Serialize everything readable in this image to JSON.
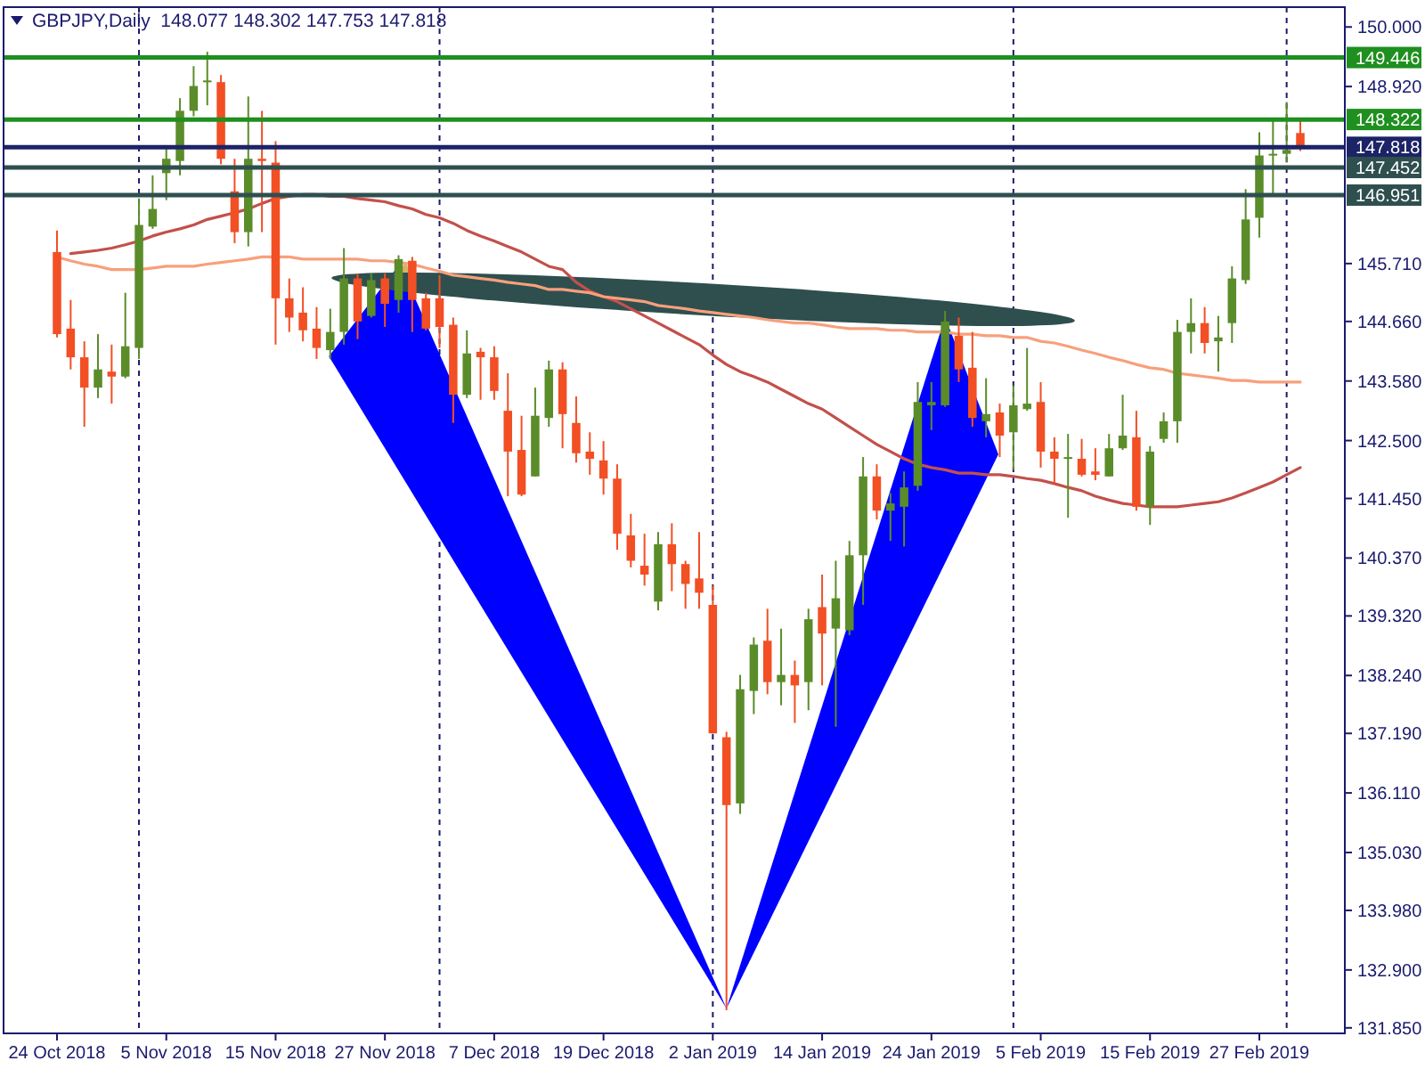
{
  "chart_data": {
    "type": "candlestick",
    "title": "GBPJPY,Daily  148.077 148.302 147.753 147.818",
    "categories": [
      "24 Oct 2018",
      null,
      null,
      null,
      null,
      null,
      null,
      null,
      "5 Nov 2018",
      null,
      null,
      null,
      null,
      null,
      null,
      null,
      "15 Nov 2018",
      null,
      null,
      null,
      null,
      null,
      null,
      null,
      "27 Nov 2018",
      null,
      null,
      null,
      null,
      null,
      null,
      null,
      "7 Dec 2018",
      null,
      null,
      null,
      null,
      null,
      null,
      null,
      "19 Dec 2018",
      null,
      null,
      null,
      null,
      null,
      null,
      null,
      "2 Jan 2019",
      null,
      null,
      null,
      null,
      null,
      null,
      null,
      "14 Jan 2019",
      null,
      null,
      null,
      null,
      null,
      null,
      null,
      "24 Jan 2019",
      null,
      null,
      null,
      null,
      null,
      null,
      null,
      "5 Feb 2019",
      null,
      null,
      null,
      null,
      null,
      null,
      null,
      "15 Feb 2019",
      null,
      null,
      null,
      null,
      null,
      null,
      null,
      "27 Feb 2019",
      null,
      null,
      null
    ],
    "ylim": [
      131.75,
      150.36
    ],
    "grid": "x",
    "yticks": [
      {
        "value": 150,
        "label": "150.000"
      },
      {
        "value": 148.92,
        "label": "148.920"
      },
      {
        "value": 145.71,
        "label": "145.710"
      },
      {
        "value": 144.66,
        "label": "144.660"
      },
      {
        "value": 143.58,
        "label": "143.580"
      },
      {
        "value": 142.5,
        "label": "142.500"
      },
      {
        "value": 141.45,
        "label": "141.450"
      },
      {
        "value": 140.37,
        "label": "140.370"
      },
      {
        "value": 139.32,
        "label": "139.320"
      },
      {
        "value": 138.24,
        "label": "138.240"
      },
      {
        "value": 137.19,
        "label": "137.190"
      },
      {
        "value": 136.11,
        "label": "136.110"
      },
      {
        "value": 135.03,
        "label": "135.030"
      },
      {
        "value": 133.98,
        "label": "133.980"
      },
      {
        "value": 132.9,
        "label": "132.900"
      },
      {
        "value": 131.85,
        "label": "131.850"
      }
    ],
    "series": [
      {
        "type": "line",
        "color": "#c3504b",
        "values": [
          null,
          145.89,
          145.92,
          145.95,
          145.99,
          146.05,
          146.12,
          146.21,
          146.28,
          146.34,
          146.41,
          146.51,
          146.57,
          146.63,
          146.7,
          146.8,
          146.89,
          146.93,
          146.96,
          146.96,
          146.93,
          146.93,
          146.89,
          146.86,
          146.83,
          146.76,
          146.7,
          146.6,
          146.54,
          146.44,
          146.31,
          146.21,
          146.12,
          146.02,
          145.92,
          145.79,
          145.66,
          145.6,
          145.37,
          145.21,
          145.11,
          145.02,
          144.89,
          144.76,
          144.63,
          144.5,
          144.37,
          144.24,
          144.05,
          143.88,
          143.75,
          143.66,
          143.56,
          143.43,
          143.3,
          143.17,
          143.07,
          142.91,
          142.75,
          142.59,
          142.43,
          142.3,
          142.17,
          142.07,
          142.01,
          141.97,
          141.91,
          141.91,
          141.88,
          141.88,
          141.85,
          141.81,
          141.78,
          141.72,
          141.65,
          141.59,
          141.49,
          141.42,
          141.36,
          141.33,
          141.3,
          141.3,
          141.3,
          141.33,
          141.36,
          141.39,
          141.46,
          141.55,
          141.65,
          141.75,
          141.88,
          142.01
        ]
      },
      {
        "type": "line",
        "color": "#f7a07c",
        "values": [
          145.83,
          145.76,
          145.7,
          145.66,
          145.6,
          145.6,
          145.6,
          145.63,
          145.66,
          145.66,
          145.66,
          145.7,
          145.73,
          145.76,
          145.79,
          145.83,
          145.83,
          145.83,
          145.79,
          145.79,
          145.79,
          145.79,
          145.79,
          145.76,
          145.76,
          145.73,
          145.7,
          145.63,
          145.57,
          145.5,
          145.47,
          145.44,
          145.41,
          145.37,
          145.34,
          145.31,
          145.24,
          145.24,
          145.21,
          145.18,
          145.11,
          145.08,
          145.05,
          145.02,
          144.95,
          144.92,
          144.89,
          144.85,
          144.82,
          144.79,
          144.76,
          144.73,
          144.69,
          144.66,
          144.63,
          144.63,
          144.6,
          144.56,
          144.53,
          144.53,
          144.53,
          144.5,
          144.5,
          144.47,
          144.47,
          144.47,
          144.43,
          144.43,
          144.4,
          144.4,
          144.37,
          144.37,
          144.3,
          144.27,
          144.21,
          144.14,
          144.08,
          144.01,
          143.95,
          143.88,
          143.82,
          143.79,
          143.72,
          143.69,
          143.66,
          143.63,
          143.59,
          143.59,
          143.56,
          143.56,
          143.56,
          143.56
        ]
      },
      {
        "type": "candlestick",
        "ohlc": [
          [
            145.92,
            146.31,
            144.37,
            144.43
          ],
          [
            144.53,
            145.05,
            143.79,
            144.01
          ],
          [
            144.01,
            144.3,
            142.75,
            143.46
          ],
          [
            143.46,
            144.43,
            143.27,
            143.79
          ],
          [
            143.75,
            144.24,
            143.17,
            143.66
          ],
          [
            143.66,
            145.18,
            143.63,
            144.21
          ],
          [
            144.18,
            146.89,
            143.98,
            146.41
          ],
          [
            146.38,
            147.31,
            146.34,
            146.7
          ],
          [
            147.35,
            147.83,
            146.86,
            147.61
          ],
          [
            147.57,
            148.71,
            147.31,
            148.48
          ],
          [
            148.48,
            149.29,
            148.38,
            148.93
          ],
          [
            149.0,
            149.55,
            148.58,
            149.03
          ],
          [
            149.0,
            149.13,
            147.51,
            147.61
          ],
          [
            147.02,
            147.61,
            146.08,
            146.28
          ],
          [
            146.28,
            148.74,
            146.02,
            147.61
          ],
          [
            147.61,
            148.48,
            146.28,
            147.57
          ],
          [
            147.54,
            147.93,
            144.24,
            145.08
          ],
          [
            145.08,
            145.44,
            144.47,
            144.73
          ],
          [
            144.82,
            145.28,
            144.3,
            144.5
          ],
          [
            144.53,
            144.92,
            143.98,
            144.18
          ],
          [
            144.14,
            144.89,
            143.98,
            144.47
          ],
          [
            144.47,
            145.99,
            144.24,
            145.44
          ],
          [
            145.44,
            145.53,
            144.34,
            144.66
          ],
          [
            144.76,
            145.53,
            144.73,
            145.41
          ],
          [
            145.44,
            145.53,
            144.56,
            144.98
          ],
          [
            145.05,
            145.86,
            144.82,
            145.79
          ],
          [
            145.76,
            145.83,
            144.47,
            145.05
          ],
          [
            145.08,
            145.18,
            144.5,
            144.53
          ],
          [
            145.08,
            145.5,
            144.18,
            144.56
          ],
          [
            144.6,
            144.73,
            142.82,
            143.33
          ],
          [
            143.33,
            144.5,
            143.27,
            144.08
          ],
          [
            144.11,
            144.18,
            143.24,
            144.01
          ],
          [
            144.01,
            144.21,
            143.24,
            143.4
          ],
          [
            143.04,
            143.72,
            141.49,
            142.3
          ],
          [
            142.33,
            142.95,
            141.49,
            141.52
          ],
          [
            141.85,
            143.46,
            141.85,
            142.95
          ],
          [
            142.91,
            143.95,
            142.75,
            143.79
          ],
          [
            143.79,
            143.92,
            142.36,
            142.98
          ],
          [
            142.82,
            143.3,
            142.1,
            142.27
          ],
          [
            142.3,
            142.65,
            141.88,
            142.17
          ],
          [
            142.14,
            142.49,
            141.52,
            141.81
          ],
          [
            141.81,
            142.07,
            140.52,
            140.81
          ],
          [
            140.78,
            141.17,
            140.2,
            140.32
          ],
          [
            140.23,
            140.81,
            139.87,
            140.07
          ],
          [
            139.58,
            140.84,
            139.42,
            140.62
          ],
          [
            140.62,
            141.0,
            139.77,
            140.26
          ],
          [
            140.26,
            140.32,
            139.45,
            139.9
          ],
          [
            140.0,
            140.84,
            139.45,
            139.74
          ],
          [
            139.52,
            139.87,
            137.19,
            137.19
          ],
          [
            137.12,
            137.22,
            132.17,
            135.89
          ],
          [
            135.92,
            138.25,
            135.73,
            137.99
          ],
          [
            137.96,
            138.93,
            137.54,
            138.8
          ],
          [
            138.87,
            139.45,
            137.9,
            138.12
          ],
          [
            138.12,
            139.09,
            137.7,
            138.25
          ],
          [
            138.25,
            138.51,
            137.38,
            138.06
          ],
          [
            138.12,
            139.45,
            137.61,
            139.26
          ],
          [
            139.48,
            140.07,
            138.06,
            139.0
          ],
          [
            139.09,
            140.32,
            137.31,
            139.64
          ],
          [
            139.06,
            140.68,
            138.97,
            140.42
          ],
          [
            140.42,
            142.2,
            139.52,
            141.85
          ],
          [
            141.85,
            142.07,
            141.07,
            141.23
          ],
          [
            141.23,
            141.55,
            140.68,
            141.36
          ],
          [
            141.3,
            141.94,
            140.58,
            141.65
          ],
          [
            141.68,
            143.56,
            141.59,
            143.2
          ],
          [
            143.14,
            143.56,
            142.69,
            143.2
          ],
          [
            143.14,
            144.85,
            143.11,
            144.66
          ],
          [
            144.4,
            144.73,
            143.56,
            143.79
          ],
          [
            143.82,
            144.47,
            142.75,
            142.91
          ],
          [
            142.85,
            143.63,
            142.56,
            142.98
          ],
          [
            143.01,
            143.17,
            142.2,
            142.59
          ],
          [
            142.65,
            143.5,
            141.97,
            143.14
          ],
          [
            143.07,
            144.18,
            143.04,
            143.17
          ],
          [
            143.2,
            143.56,
            142.01,
            142.3
          ],
          [
            142.3,
            142.56,
            141.72,
            142.17
          ],
          [
            142.17,
            142.62,
            141.1,
            142.2
          ],
          [
            142.17,
            142.53,
            141.85,
            141.88
          ],
          [
            141.94,
            142.36,
            141.78,
            141.88
          ],
          [
            141.85,
            142.62,
            141.85,
            142.36
          ],
          [
            142.36,
            143.33,
            142.33,
            142.59
          ],
          [
            142.56,
            143.04,
            141.23,
            141.3
          ],
          [
            141.3,
            142.4,
            140.97,
            142.3
          ],
          [
            142.53,
            143.01,
            142.46,
            142.85
          ],
          [
            142.85,
            144.69,
            142.46,
            144.47
          ],
          [
            144.47,
            145.08,
            144.08,
            144.63
          ],
          [
            144.63,
            144.92,
            144.08,
            144.27
          ],
          [
            144.3,
            144.76,
            143.75,
            144.37
          ],
          [
            144.63,
            145.66,
            144.27,
            145.44
          ],
          [
            145.41,
            147.06,
            145.34,
            146.51
          ],
          [
            146.54,
            148.09,
            146.18,
            147.67
          ],
          [
            147.67,
            148.32,
            146.96,
            147.7
          ],
          [
            147.7,
            148.64,
            147.54,
            147.77
          ],
          [
            148.077,
            148.302,
            147.753,
            147.818
          ]
        ],
        "colors": [
          "#f24f24",
          "#f24f24",
          "#f24f24",
          "#5b8c2a",
          "#f24f24",
          "#5b8c2a",
          "#5b8c2a",
          "#5b8c2a",
          "#5b8c2a",
          "#5b8c2a",
          "#5b8c2a",
          "#5b8c2a",
          "#f24f24",
          "#f24f24",
          "#5b8c2a",
          "#f24f24",
          "#f24f24",
          "#f24f24",
          "#f24f24",
          "#f24f24",
          "#5b8c2a",
          "#5b8c2a",
          "#f24f24",
          "#5b8c2a",
          "#f24f24",
          "#5b8c2a",
          "#f24f24",
          "#f24f24",
          "#f24f24",
          "#f24f24",
          "#5b8c2a",
          "#f24f24",
          "#f24f24",
          "#f24f24",
          "#f24f24",
          "#5b8c2a",
          "#5b8c2a",
          "#f24f24",
          "#f24f24",
          "#f24f24",
          "#f24f24",
          "#f24f24",
          "#f24f24",
          "#f24f24",
          "#5b8c2a",
          "#f24f24",
          "#f24f24",
          "#f24f24",
          "#f24f24",
          "#f24f24",
          "#5b8c2a",
          "#5b8c2a",
          "#f24f24",
          "#5b8c2a",
          "#f24f24",
          "#5b8c2a",
          "#f24f24",
          "#5b8c2a",
          "#5b8c2a",
          "#5b8c2a",
          "#f24f24",
          "#5b8c2a",
          "#5b8c2a",
          "#5b8c2a",
          "#5b8c2a",
          "#5b8c2a",
          "#f24f24",
          "#f24f24",
          "#5b8c2a",
          "#f24f24",
          "#5b8c2a",
          "#5b8c2a",
          "#f24f24",
          "#f24f24",
          "#5b8c2a",
          "#f24f24",
          "#f24f24",
          "#5b8c2a",
          "#5b8c2a",
          "#f24f24",
          "#5b8c2a",
          "#5b8c2a",
          "#5b8c2a",
          "#5b8c2a",
          "#f24f24",
          "#5b8c2a",
          "#5b8c2a",
          "#5b8c2a",
          "#5b8c2a",
          "#5b8c2a",
          "#5b8c2a",
          "#f24f24"
        ]
      }
    ],
    "ref_lines": [
      {
        "axis": "y",
        "value": 149.446,
        "label": "149.446",
        "color": "#1f8f1f"
      },
      {
        "axis": "y",
        "value": 148.322,
        "label": "148.322",
        "color": "#1f8f1f"
      },
      {
        "axis": "y",
        "value": 147.818,
        "label": "147.818",
        "color": "#1c2366"
      },
      {
        "axis": "y",
        "value": 147.452,
        "label": "147.452",
        "color": "#2f4f4f"
      },
      {
        "axis": "y",
        "value": 146.951,
        "label": "146.951",
        "color": "#2f4f4f"
      }
    ]
  }
}
